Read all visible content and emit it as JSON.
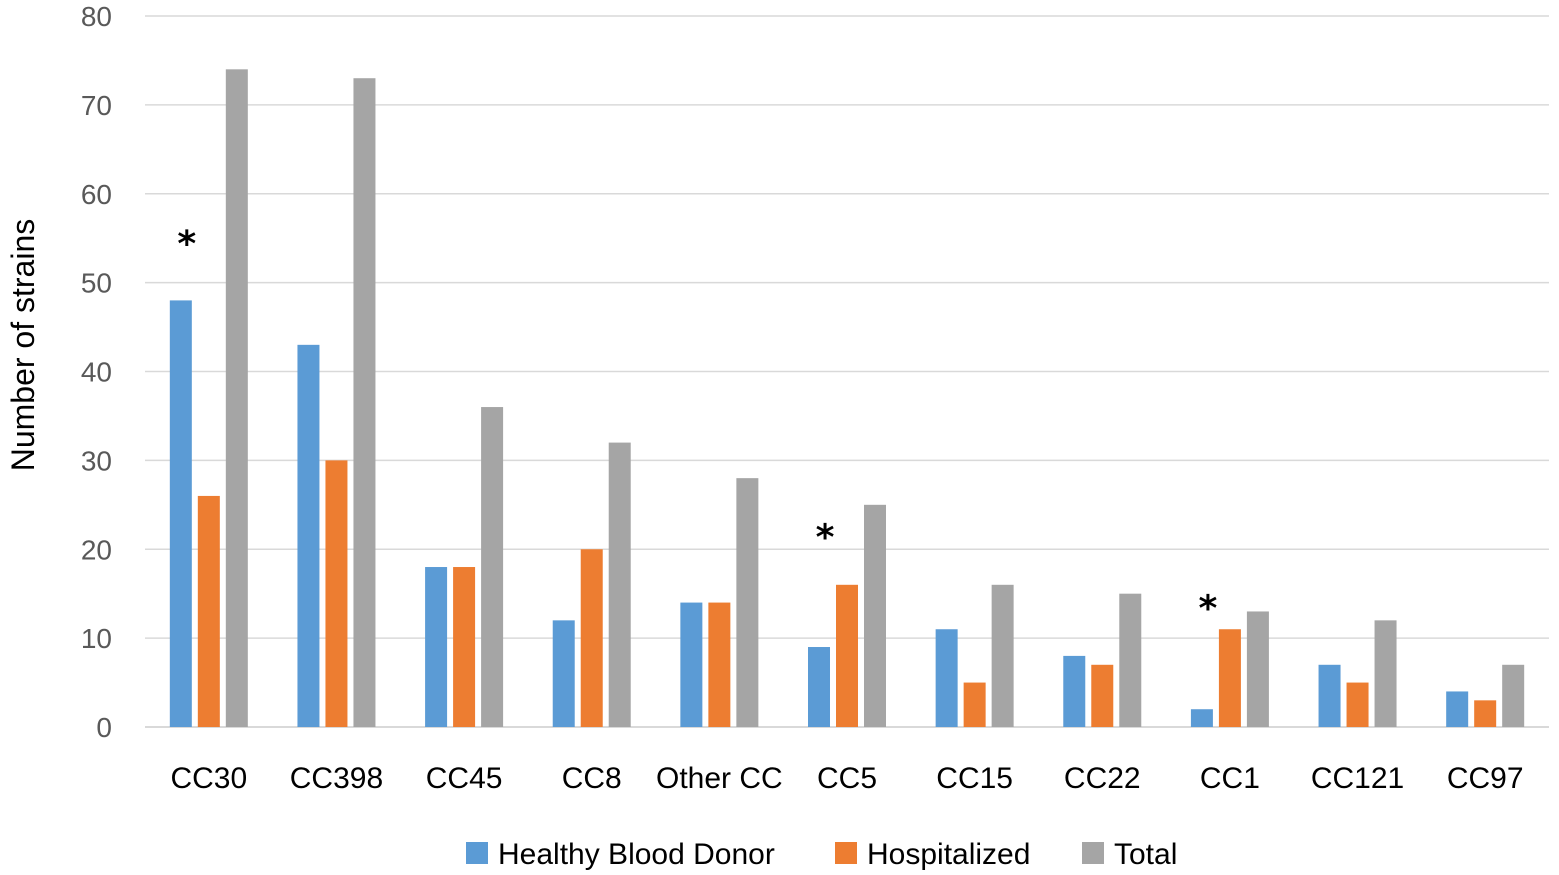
{
  "chart_data": {
    "type": "bar",
    "title": "",
    "xlabel": "",
    "ylabel": "Number of strains",
    "ylim": [
      0,
      80
    ],
    "yticks": [
      0,
      10,
      20,
      30,
      40,
      50,
      60,
      70,
      80
    ],
    "grid": true,
    "legend_position": "bottom",
    "categories": [
      "CC30",
      "CC398",
      "CC45",
      "CC8",
      "Other CC",
      "CC5",
      "CC15",
      "CC22",
      "CC1",
      "CC121",
      "CC97"
    ],
    "series": [
      {
        "name": "Healthy Blood Donor",
        "color": "#5b9bd5",
        "values": [
          48,
          43,
          18,
          12,
          14,
          9,
          11,
          8,
          2,
          7,
          4
        ]
      },
      {
        "name": "Hospitalized",
        "color": "#ed7d31",
        "values": [
          26,
          30,
          18,
          20,
          14,
          16,
          5,
          7,
          11,
          5,
          3
        ]
      },
      {
        "name": "Total",
        "color": "#a5a5a5",
        "values": [
          74,
          73,
          36,
          32,
          28,
          25,
          16,
          15,
          13,
          12,
          7
        ]
      }
    ],
    "annotations": [
      {
        "text": "*",
        "category": "CC30",
        "series": "Hospitalized",
        "value": 55
      },
      {
        "text": "*",
        "category": "CC5",
        "series": "Hospitalized",
        "value": 22
      },
      {
        "text": "*",
        "category": "CC1",
        "series": "Hospitalized",
        "value": 14
      }
    ]
  }
}
